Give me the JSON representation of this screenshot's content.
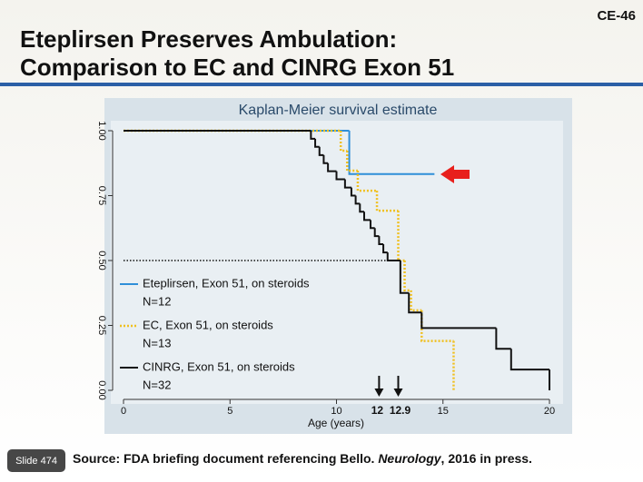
{
  "slide_id": "CE-46",
  "title_lines": [
    "Eteplirsen Preserves Ambulation:",
    "Comparison to EC and CINRG Exon 51"
  ],
  "chart_data": {
    "type": "step",
    "title": "Kaplan-Meier survival estimate",
    "xlabel": "Age (years)",
    "xlim": [
      0,
      20
    ],
    "xticks": [
      0,
      5,
      10,
      15,
      20
    ],
    "ylim": [
      0,
      1
    ],
    "yticks": [
      {
        "value": 0,
        "label": "0.00"
      },
      {
        "value": 0.25,
        "label": "0.25"
      },
      {
        "value": 0.5,
        "label": "0.50"
      },
      {
        "value": 0.75,
        "label": "0.75"
      },
      {
        "value": 1,
        "label": "1.00"
      }
    ],
    "median_line": 0.5,
    "series": [
      {
        "name": "Eteplirsen, Exon 51, on steroids",
        "n_label": "N=12",
        "color": "#2f8fd8",
        "style": "solid",
        "x": [
          0,
          10.6,
          14.6
        ],
        "values": [
          1,
          0.833,
          0.833
        ]
      },
      {
        "name": "EC, Exon 51, on steroids",
        "n_label": "N=13",
        "color": "#f0c020",
        "style": "dotted",
        "x": [
          0,
          10.2,
          10.5,
          11.0,
          11.9,
          12.9,
          13.2,
          13.5,
          14.0,
          15.5
        ],
        "values": [
          1,
          0.923,
          0.846,
          0.769,
          0.692,
          0.5,
          0.385,
          0.308,
          0.19,
          0
        ]
      },
      {
        "name": "CINRG, Exon 51, on steroids",
        "n_label": "N=32",
        "color": "#111111",
        "style": "solid",
        "x": [
          0,
          8.8,
          9.0,
          9.2,
          9.4,
          9.6,
          10.0,
          10.4,
          10.7,
          10.9,
          11.1,
          11.3,
          11.6,
          11.8,
          12.0,
          12.2,
          12.4,
          13.0,
          13.4,
          14.0,
          17.5,
          18.2,
          20
        ],
        "values": [
          1,
          0.969,
          0.938,
          0.906,
          0.875,
          0.844,
          0.813,
          0.781,
          0.75,
          0.719,
          0.688,
          0.656,
          0.625,
          0.594,
          0.563,
          0.531,
          0.5,
          0.375,
          0.3,
          0.24,
          0.16,
          0.08,
          0
        ]
      }
    ],
    "annotations": [
      {
        "x": 12,
        "label": "12"
      },
      {
        "x": 12.9,
        "label": "12.9"
      }
    ]
  },
  "source": {
    "prefix": "Source: FDA briefing document referencing Bello. ",
    "journal": "Neurology",
    "suffix": ", 2016 in press."
  },
  "slide_number": "Slide 474"
}
